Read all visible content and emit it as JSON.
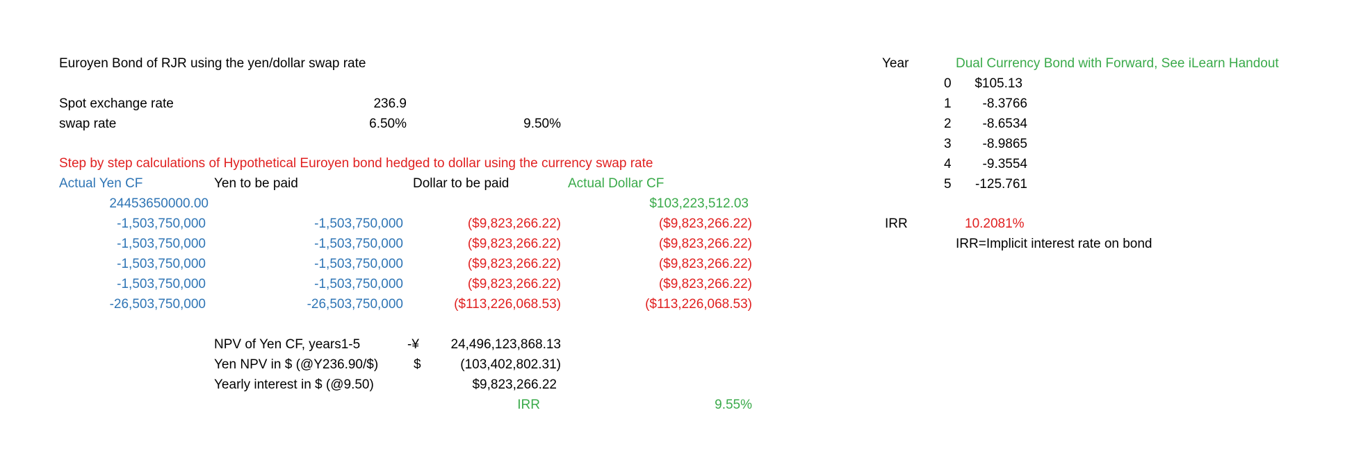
{
  "left": {
    "title": "Euroyen Bond of RJR using the yen/dollar swap rate",
    "spot": {
      "label": "Spot exchange rate",
      "value": "236.9"
    },
    "swap": {
      "label": "swap rate",
      "value_yen": "6.50%",
      "value_dollar": "9.50%"
    },
    "step_heading": "Step by step calculations of Hypothetical Euroyen bond hedged to dollar using the currency swap rate",
    "headers": {
      "actual_yen_cf": "Actual Yen CF",
      "yen_to_be_paid": "Yen to be paid",
      "dollar_to_be_paid": "Dollar to be paid",
      "actual_dollar_cf": "Actual Dollar CF"
    },
    "rows": [
      {
        "actual_yen": "24453650000.00",
        "yen_paid": "",
        "dollar_paid": "",
        "actual_dollar": "$103,223,512.03"
      },
      {
        "actual_yen": "-1,503,750,000",
        "yen_paid": "-1,503,750,000",
        "dollar_paid": "($9,823,266.22)",
        "actual_dollar": "($9,823,266.22)"
      },
      {
        "actual_yen": "-1,503,750,000",
        "yen_paid": "-1,503,750,000",
        "dollar_paid": "($9,823,266.22)",
        "actual_dollar": "($9,823,266.22)"
      },
      {
        "actual_yen": "-1,503,750,000",
        "yen_paid": "-1,503,750,000",
        "dollar_paid": "($9,823,266.22)",
        "actual_dollar": "($9,823,266.22)"
      },
      {
        "actual_yen": "-1,503,750,000",
        "yen_paid": "-1,503,750,000",
        "dollar_paid": "($9,823,266.22)",
        "actual_dollar": "($9,823,266.22)"
      },
      {
        "actual_yen": "-26,503,750,000",
        "yen_paid": "-26,503,750,000",
        "dollar_paid": "($113,226,068.53)",
        "actual_dollar": "($113,226,068.53)"
      }
    ],
    "npv_yen": {
      "label": "NPV of Yen CF, years1-5",
      "currency": "-¥",
      "value": "24,496,123,868.13"
    },
    "npv_dollar": {
      "label": "Yen NPV in $ (@Y236.90/$)",
      "currency": "$",
      "value": "(103,402,802.31)"
    },
    "yearly_interest": {
      "label": "Yearly interest in $ (@9.50)",
      "value": "$9,823,266.22"
    },
    "irr": {
      "label": "IRR",
      "value": "9.55%"
    }
  },
  "right": {
    "year_label": "Year",
    "title": "Dual Currency Bond with Forward, See iLearn Handout",
    "rows": [
      {
        "year": "0",
        "value": "$105.13"
      },
      {
        "year": "1",
        "value": "-8.3766"
      },
      {
        "year": "2",
        "value": "-8.6534"
      },
      {
        "year": "3",
        "value": "-8.9865"
      },
      {
        "year": "4",
        "value": "-9.3554"
      },
      {
        "year": "5",
        "value": "-125.761"
      }
    ],
    "irr": {
      "label": "IRR",
      "value": "10.2081%",
      "note": "IRR=Implicit interest rate on bond"
    }
  }
}
